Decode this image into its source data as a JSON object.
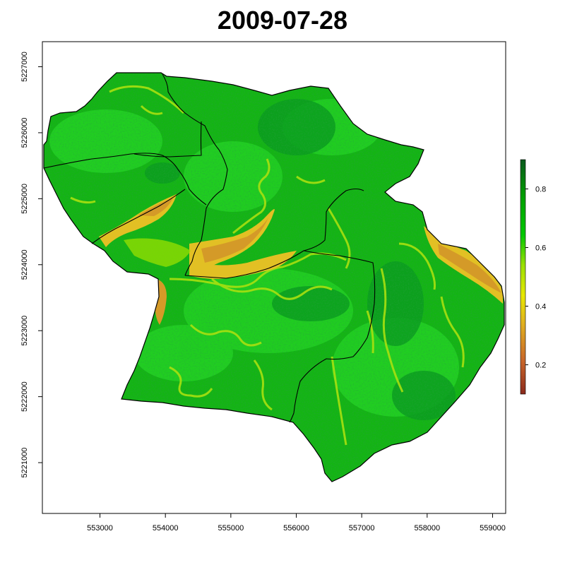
{
  "title": "2009-07-28",
  "map": {
    "x_axis_ticks": [
      "553000",
      "554000",
      "555000",
      "556000",
      "557000",
      "558000",
      "559000"
    ],
    "y_axis_ticks": [
      "5221000",
      "5222000",
      "5223000",
      "5224000",
      "5225000",
      "5226000",
      "5227000"
    ],
    "x_range": [
      552120,
      559200
    ],
    "y_range": [
      5220230,
      5227380
    ],
    "legend": {
      "min": 0.1,
      "max": 0.9,
      "ticks": [
        "0.2",
        "0.4",
        "0.6",
        "0.8"
      ],
      "colors": [
        "#8b2a1c",
        "#c8652a",
        "#e0b020",
        "#e8e800",
        "#9ae000",
        "#00c800",
        "#00a000",
        "#0a5a1e"
      ]
    },
    "colors": {
      "base": "#14b414",
      "bright": "#22d022",
      "dark": "#0a9c1e",
      "stream": "#a8e010",
      "low": "#e2c024",
      "very_low": "#d49a28",
      "boundary": "#000000"
    }
  }
}
